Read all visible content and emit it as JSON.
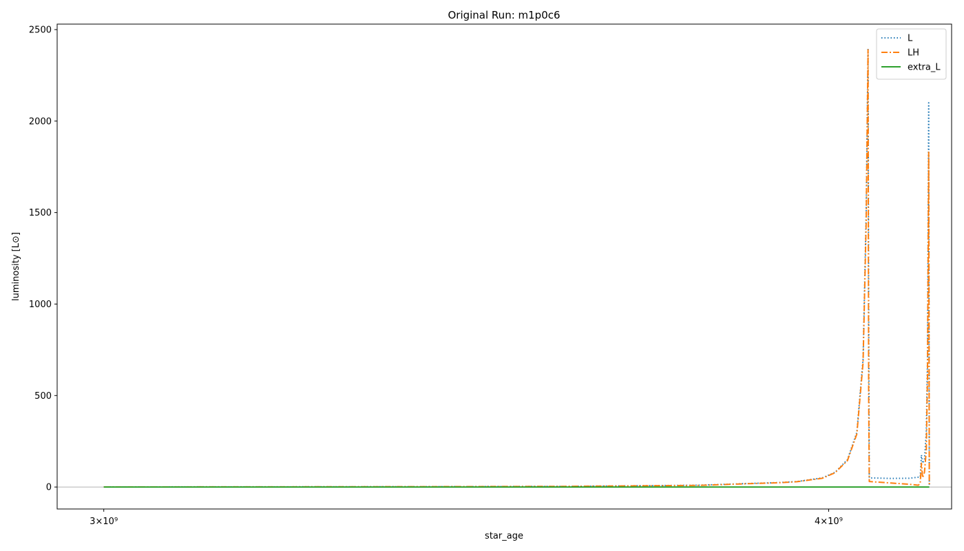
{
  "chart_data": {
    "type": "line",
    "title": "Original Run: m1p0c6",
    "xlabel": "star_age",
    "ylabel": "luminosity [L⊙]",
    "xscale": "log",
    "xlim": [
      2945000000,
      4200000000
    ],
    "ylim": [
      -120,
      2530
    ],
    "x_ticks": [
      {
        "value": 3000000000,
        "label": "3×10⁹"
      },
      {
        "value": 4000000000,
        "label": "4×10⁹"
      }
    ],
    "y_ticks": [
      0,
      500,
      1000,
      1500,
      2000,
      2500
    ],
    "zero_line": true,
    "legend_position": "top-right",
    "series": [
      {
        "name": "L",
        "color": "#1f77b4",
        "dash": "dotted",
        "points": [
          [
            3000000000,
            0.5
          ],
          [
            3200000000,
            1.0
          ],
          [
            3400000000,
            2.0
          ],
          [
            3600000000,
            3.5
          ],
          [
            3800000000,
            10
          ],
          [
            3880000000,
            20
          ],
          [
            3920000000,
            24
          ],
          [
            3950000000,
            30
          ],
          [
            3990000000,
            50
          ],
          [
            4010000000,
            80
          ],
          [
            4030000000,
            150
          ],
          [
            4045000000,
            300
          ],
          [
            4055000000,
            700
          ],
          [
            4060000000,
            1500
          ],
          [
            4063000000,
            2400
          ],
          [
            4064000000,
            1000
          ],
          [
            4065000000,
            50
          ],
          [
            4100000000,
            47
          ],
          [
            4130000000,
            48
          ],
          [
            4148000000,
            55
          ],
          [
            4150000000,
            175
          ],
          [
            4152000000,
            130
          ],
          [
            4155000000,
            150
          ],
          [
            4158000000,
            300
          ],
          [
            4160000000,
            700
          ],
          [
            4162000000,
            2100
          ],
          [
            4163000000,
            10
          ]
        ]
      },
      {
        "name": "LH",
        "color": "#ff7f0e",
        "dash": "dashdot",
        "points": [
          [
            3000000000,
            0.4
          ],
          [
            3200000000,
            0.9
          ],
          [
            3400000000,
            1.9
          ],
          [
            3600000000,
            3.4
          ],
          [
            3800000000,
            9
          ],
          [
            3880000000,
            19
          ],
          [
            3920000000,
            23
          ],
          [
            3950000000,
            29
          ],
          [
            3990000000,
            48
          ],
          [
            4010000000,
            78
          ],
          [
            4030000000,
            145
          ],
          [
            4045000000,
            290
          ],
          [
            4055000000,
            680
          ],
          [
            4060000000,
            1450
          ],
          [
            4063000000,
            2390
          ],
          [
            4064000000,
            500
          ],
          [
            4065000000,
            30
          ],
          [
            4100000000,
            22
          ],
          [
            4130000000,
            15
          ],
          [
            4145000000,
            10
          ],
          [
            4148000000,
            20
          ],
          [
            4150000000,
            130
          ],
          [
            4152000000,
            50
          ],
          [
            4155000000,
            80
          ],
          [
            4158000000,
            200
          ],
          [
            4160000000,
            600
          ],
          [
            4162000000,
            1830
          ],
          [
            4163000000,
            5
          ]
        ]
      },
      {
        "name": "extra_L",
        "color": "#2ca02c",
        "dash": "solid",
        "points": [
          [
            3000000000,
            0
          ],
          [
            4163000000,
            0
          ]
        ]
      }
    ]
  }
}
